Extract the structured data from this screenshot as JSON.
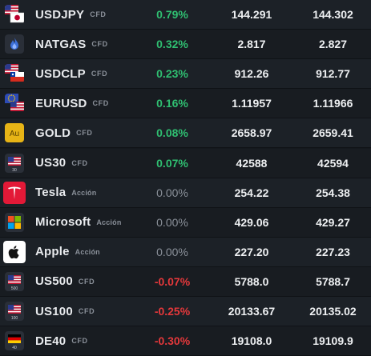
{
  "rows": [
    {
      "symbol": "USDJPY",
      "tag": "CFD",
      "change": "0.79%",
      "dir": "up",
      "bid": "144.291",
      "ask": "144.302",
      "icon": "flag-usa-japan-icon"
    },
    {
      "symbol": "NATGAS",
      "tag": "CFD",
      "change": "0.32%",
      "dir": "up",
      "bid": "2.817",
      "ask": "2.827",
      "icon": "flame-icon"
    },
    {
      "symbol": "USDCLP",
      "tag": "CFD",
      "change": "0.23%",
      "dir": "up",
      "bid": "912.26",
      "ask": "912.77",
      "icon": "flag-usa-chile-icon"
    },
    {
      "symbol": "EURUSD",
      "tag": "CFD",
      "change": "0.16%",
      "dir": "up",
      "bid": "1.11957",
      "ask": "1.11966",
      "icon": "flag-eu-usa-icon"
    },
    {
      "symbol": "GOLD",
      "tag": "CFD",
      "change": "0.08%",
      "dir": "up",
      "bid": "2658.97",
      "ask": "2659.41",
      "icon": "gold-icon",
      "icon_text": "Au"
    },
    {
      "symbol": "US30",
      "tag": "CFD",
      "change": "0.07%",
      "dir": "up",
      "bid": "42588",
      "ask": "42594",
      "icon": "flag-usa-index-icon",
      "icon_text": "30"
    },
    {
      "symbol": "Tesla",
      "tag": "Acción",
      "change": "0.00%",
      "dir": "flat",
      "bid": "254.22",
      "ask": "254.38",
      "icon": "tesla-logo-icon"
    },
    {
      "symbol": "Microsoft",
      "tag": "Acción",
      "change": "0.00%",
      "dir": "flat",
      "bid": "429.06",
      "ask": "429.27",
      "icon": "microsoft-logo-icon"
    },
    {
      "symbol": "Apple",
      "tag": "Acción",
      "change": "0.00%",
      "dir": "flat",
      "bid": "227.20",
      "ask": "227.23",
      "icon": "apple-logo-icon"
    },
    {
      "symbol": "US500",
      "tag": "CFD",
      "change": "-0.07%",
      "dir": "down",
      "bid": "5788.0",
      "ask": "5788.7",
      "icon": "flag-usa-index-icon",
      "icon_text": "500"
    },
    {
      "symbol": "US100",
      "tag": "CFD",
      "change": "-0.25%",
      "dir": "down",
      "bid": "20133.67",
      "ask": "20135.02",
      "icon": "flag-usa-index-icon",
      "icon_text": "100"
    },
    {
      "symbol": "DE40",
      "tag": "CFD",
      "change": "-0.30%",
      "dir": "down",
      "bid": "19108.0",
      "ask": "19109.9",
      "icon": "flag-germany-index-icon",
      "icon_text": "40"
    }
  ],
  "colors": {
    "up": "#2fbf71",
    "down": "#e5383b",
    "flat": "#8a9099",
    "background": "#15191e"
  }
}
